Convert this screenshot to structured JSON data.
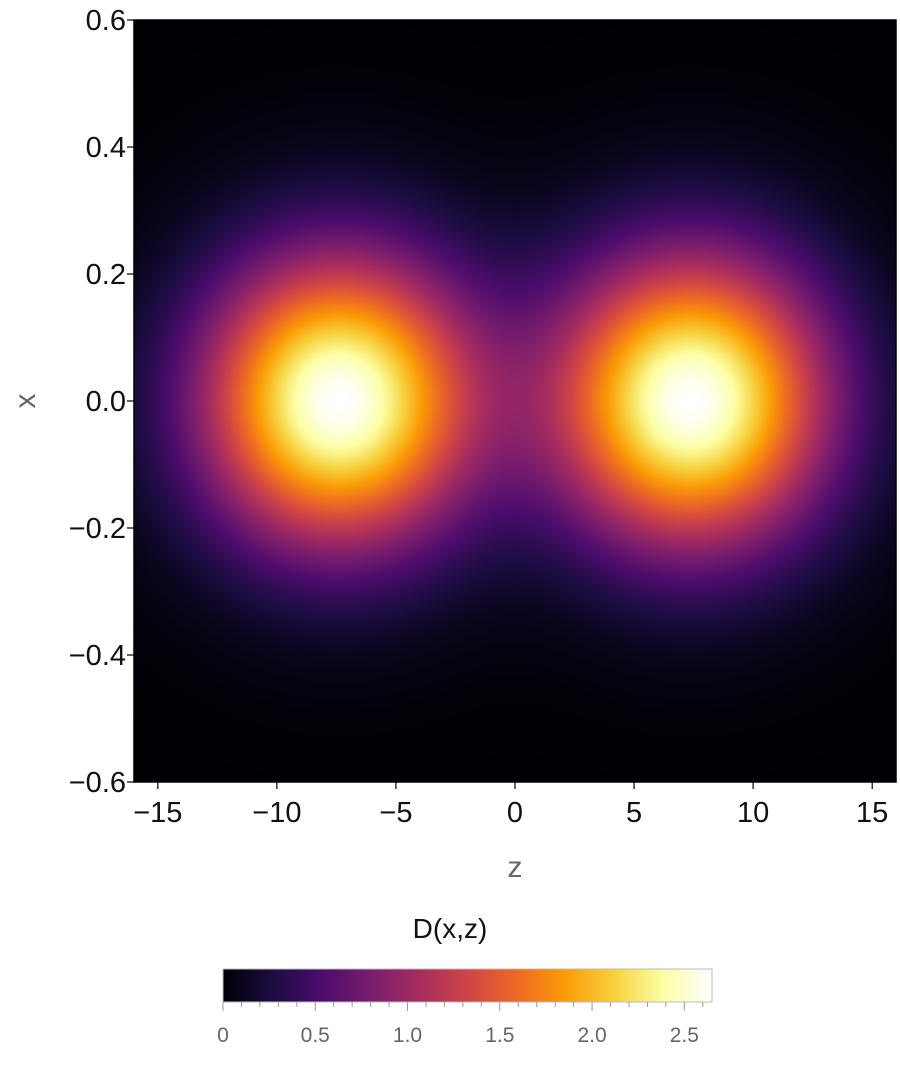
{
  "chart_data": {
    "type": "heatmap",
    "title": "",
    "xlabel": "z",
    "ylabel": "x",
    "xlim": [
      -16,
      16
    ],
    "ylim": [
      -0.6,
      0.6
    ],
    "x_ticks": [
      {
        "value": -15,
        "label": "−15"
      },
      {
        "value": -10,
        "label": "−10"
      },
      {
        "value": -5,
        "label": "−5"
      },
      {
        "value": 0,
        "label": "0"
      },
      {
        "value": 5,
        "label": "5"
      },
      {
        "value": 10,
        "label": "10"
      },
      {
        "value": 15,
        "label": "15"
      }
    ],
    "y_ticks": [
      {
        "value": 0.6,
        "label": "0.6"
      },
      {
        "value": 0.4,
        "label": "0.4"
      },
      {
        "value": 0.2,
        "label": "0.2"
      },
      {
        "value": 0.0,
        "label": "0.0"
      },
      {
        "value": -0.2,
        "label": "−0.2"
      },
      {
        "value": -0.4,
        "label": "−0.4"
      },
      {
        "value": -0.6,
        "label": "−0.6"
      }
    ],
    "peaks": [
      {
        "z": -7.4,
        "x": 0.0,
        "value": 2.65,
        "sigma_z": 4.0,
        "sigma_x": 0.16
      },
      {
        "z": 7.4,
        "x": 0.0,
        "value": 2.65,
        "sigma_z": 4.0,
        "sigma_x": 0.16
      }
    ],
    "colorbar": {
      "title": "D(x,z)",
      "min": 0,
      "max": 2.65,
      "ticks": [
        {
          "value": 0,
          "label": "0"
        },
        {
          "value": 0.5,
          "label": "0.5"
        },
        {
          "value": 1.0,
          "label": "1.0"
        },
        {
          "value": 1.5,
          "label": "1.5"
        },
        {
          "value": 2.0,
          "label": "2.0"
        },
        {
          "value": 2.5,
          "label": "2.5"
        }
      ],
      "colors": [
        "#000004",
        "#1b0c41",
        "#4a0c6b",
        "#781c6d",
        "#a52c60",
        "#cf4446",
        "#ed6925",
        "#fb9b06",
        "#f7d13d",
        "#fcffa4",
        "#ffffff"
      ]
    }
  }
}
